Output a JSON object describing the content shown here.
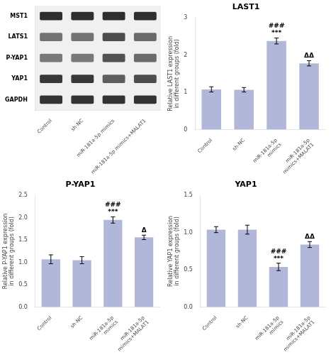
{
  "chart_data": [
    {
      "type": "heatmap",
      "categories": [
        "Control",
        "sh-NC",
        "miR-181a-5p mimics",
        "miR-181a-5p mimics+MALAT1"
      ],
      "rows": [
        "MST1",
        "LATS1",
        "P-YAP1",
        "YAP1",
        "GAPDH"
      ],
      "cells": [
        [
          0.18,
          0.18,
          0.18,
          0.18
        ],
        [
          0.45,
          0.45,
          0.3,
          0.42
        ],
        [
          0.47,
          0.47,
          0.32,
          0.42
        ],
        [
          0.22,
          0.22,
          0.37,
          0.3
        ],
        [
          0.2,
          0.2,
          0.2,
          0.2
        ]
      ],
      "grid": false
    },
    {
      "type": "bar",
      "title": "LAST1",
      "ylabel": "Relative LAST1 expression\nin different groups (fold)",
      "categories": [
        "Control",
        "sh-NC",
        "miR-181a-5p\nmimics",
        "miR-181a-5p\nmimics+MALAT1"
      ],
      "values": [
        1.08,
        1.07,
        2.38,
        1.78
      ],
      "errors": [
        0.07,
        0.06,
        0.08,
        0.07
      ],
      "color": "#b0b7d8",
      "ylim": [
        0,
        3
      ],
      "yticks": [
        0,
        1,
        2,
        3
      ],
      "grid": false,
      "annotations": [
        {
          "category": "miR-181a-5p\nmimics",
          "text": "***"
        },
        {
          "category": "miR-181a-5p\nmimics",
          "text": "###"
        },
        {
          "category": "miR-181a-5p\nmimics+MALAT1",
          "text": "ΔΔ"
        }
      ]
    },
    {
      "type": "bar",
      "title": "P-YAP1",
      "ylabel": "Relative P-YAP1 expression\nin different groups (fold)",
      "categories": [
        "Control",
        "sh-NC",
        "miR-181a-5p\nmimics",
        "miR-181a-5p\nmimics+MALAT1"
      ],
      "values": [
        1.07,
        1.05,
        1.95,
        1.56
      ],
      "errors": [
        0.1,
        0.08,
        0.07,
        0.05
      ],
      "color": "#b0b7d8",
      "ylim": [
        0,
        2.5
      ],
      "yticks": [
        {
          "value": 0,
          "label": "0.0"
        },
        0.5,
        {
          "value": 1,
          "label": "1.0"
        },
        1.5,
        {
          "value": 2,
          "label": "2.0"
        },
        2.5
      ],
      "grid": false,
      "annotations": [
        {
          "category": "miR-181a-5p\nmimics",
          "text": "***"
        },
        {
          "category": "miR-181a-5p\nmimics",
          "text": "###"
        },
        {
          "category": "miR-181a-5p\nmimics+MALAT1",
          "text": "Δ"
        }
      ]
    },
    {
      "type": "bar",
      "title": "YAP1",
      "ylabel": "Relative YAP1 expression\nin different groups (fold)",
      "categories": [
        "Control",
        "sh-NC",
        "miR-181a-5p\nmimics",
        "miR-181a-5p\nmimics+MALAT1"
      ],
      "values": [
        1.04,
        1.04,
        0.54,
        0.84
      ],
      "errors": [
        0.04,
        0.06,
        0.05,
        0.04
      ],
      "color": "#b0b7d8",
      "ylim": [
        0,
        1.5
      ],
      "yticks": [
        {
          "value": 0,
          "label": "0.0"
        },
        0.5,
        {
          "value": 1,
          "label": "1.0"
        },
        1.5
      ],
      "grid": false,
      "annotations": [
        {
          "category": "miR-181a-5p\nmimics",
          "text": "***"
        },
        {
          "category": "miR-181a-5p\nmimics",
          "text": "###"
        },
        {
          "category": "miR-181a-5p\nmimics+MALAT1",
          "text": "ΔΔ"
        }
      ]
    }
  ]
}
